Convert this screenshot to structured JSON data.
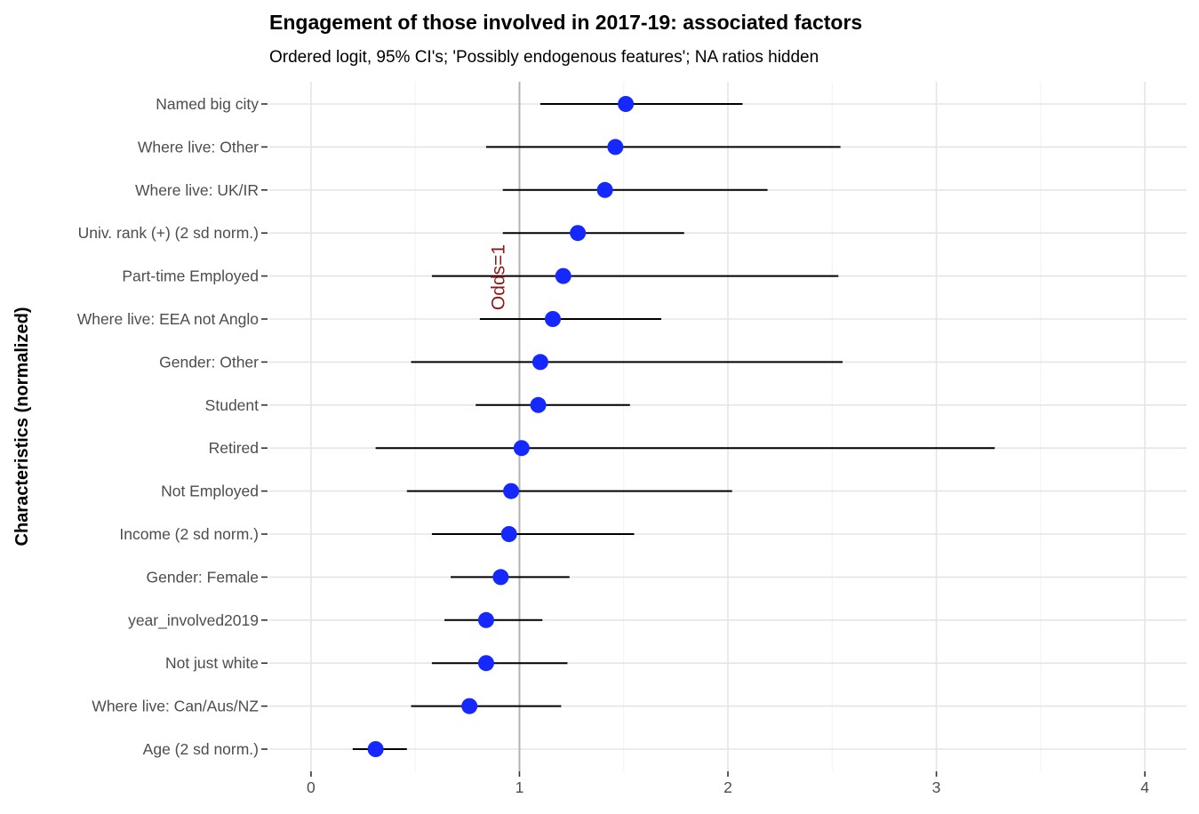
{
  "chart_data": {
    "type": "scatter",
    "subtype": "point-range (odds ratios with 95% CI)",
    "title": "Engagement of those involved in 2017-19: associated factors",
    "subtitle": "Ordered logit, 95% CI's; 'Possibly endogenous features'; NA ratios hidden",
    "xlabel": "",
    "ylabel": "Characteristics (normalized)",
    "xlim": [
      -0.2,
      4.2
    ],
    "xticks": [
      "0",
      "1",
      "2",
      "3",
      "4"
    ],
    "grid": true,
    "reference_line": {
      "x": 1,
      "label": "Odds=1",
      "color": "#b3b3b3",
      "label_color": "#8b1a1a"
    },
    "point_color": "#1428ff",
    "categories": [
      "Named big city",
      "Where live: Other",
      "Where live: UK/IR",
      "Univ. rank (+) (2 sd norm.)",
      "Part-time Employed",
      "Where live: EEA not Anglo",
      "Gender: Other",
      "Student",
      "Retired",
      "Not Employed",
      "Income (2 sd norm.)",
      "Gender: Female",
      "year_involved2019",
      "Not just white",
      "Where live: Can/Aus/NZ",
      "Age (2 sd norm.)"
    ],
    "estimate": [
      1.51,
      1.46,
      1.41,
      1.28,
      1.21,
      1.16,
      1.1,
      1.09,
      1.01,
      0.96,
      0.95,
      0.91,
      0.84,
      0.84,
      0.76,
      0.31
    ],
    "ci_low": [
      1.1,
      0.84,
      0.92,
      0.92,
      0.58,
      0.81,
      0.48,
      0.79,
      0.31,
      0.46,
      0.58,
      0.67,
      0.64,
      0.58,
      0.48,
      0.2
    ],
    "ci_high": [
      2.07,
      2.54,
      2.19,
      1.79,
      2.53,
      1.68,
      2.55,
      1.53,
      3.28,
      2.02,
      1.55,
      1.24,
      1.11,
      1.23,
      1.2,
      0.46
    ]
  }
}
